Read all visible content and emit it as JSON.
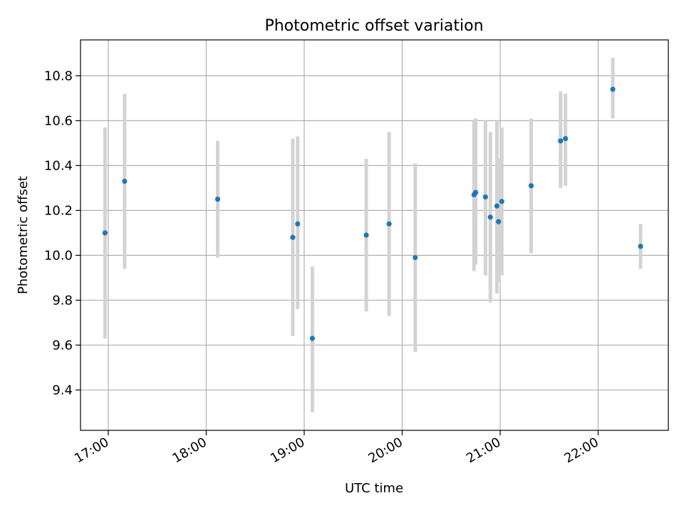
{
  "chart_data": {
    "type": "scatter",
    "title": "Photometric offset variation",
    "xlabel": "UTC time",
    "ylabel": "Photometric offset",
    "x_tick_labels": [
      "17:00",
      "18:00",
      "19:00",
      "20:00",
      "21:00",
      "22:00"
    ],
    "x_ticks": [
      "17:00",
      "18:00",
      "19:00",
      "20:00",
      "21:00",
      "22:00"
    ],
    "xlim": [
      "16:43",
      "22:43"
    ],
    "y_tick_labels": [
      "9.4",
      "9.6",
      "9.8",
      "10.0",
      "10.2",
      "10.4",
      "10.6",
      "10.8"
    ],
    "y_ticks": [
      9.4,
      9.6,
      9.8,
      10.0,
      10.2,
      10.4,
      10.6,
      10.8
    ],
    "ylim": [
      9.22,
      10.96
    ],
    "grid": true,
    "errorbar_color": "#d3d3d3",
    "marker_color": "#1f77b4",
    "points": [
      {
        "x": "16:58",
        "y": 10.1,
        "ylow": 9.63,
        "yhigh": 10.57
      },
      {
        "x": "17:10",
        "y": 10.33,
        "ylow": 9.94,
        "yhigh": 10.72
      },
      {
        "x": "18:07",
        "y": 10.25,
        "ylow": 9.99,
        "yhigh": 10.51
      },
      {
        "x": "18:53",
        "y": 10.08,
        "ylow": 9.64,
        "yhigh": 10.52
      },
      {
        "x": "18:56",
        "y": 10.14,
        "ylow": 9.76,
        "yhigh": 10.53
      },
      {
        "x": "19:05",
        "y": 9.63,
        "ylow": 9.3,
        "yhigh": 9.95
      },
      {
        "x": "19:38",
        "y": 10.09,
        "ylow": 9.75,
        "yhigh": 10.43
      },
      {
        "x": "19:52",
        "y": 10.14,
        "ylow": 9.73,
        "yhigh": 10.55
      },
      {
        "x": "20:08",
        "y": 9.99,
        "ylow": 9.57,
        "yhigh": 10.41
      },
      {
        "x": "20:44",
        "y": 10.27,
        "ylow": 9.93,
        "yhigh": 10.6
      },
      {
        "x": "20:45",
        "y": 10.28,
        "ylow": 9.96,
        "yhigh": 10.61
      },
      {
        "x": "20:51",
        "y": 10.26,
        "ylow": 9.91,
        "yhigh": 10.6
      },
      {
        "x": "20:54",
        "y": 10.17,
        "ylow": 9.79,
        "yhigh": 10.55
      },
      {
        "x": "20:58",
        "y": 10.22,
        "ylow": 9.83,
        "yhigh": 10.6
      },
      {
        "x": "20:59",
        "y": 10.15,
        "ylow": 9.88,
        "yhigh": 10.43
      },
      {
        "x": "21:01",
        "y": 10.24,
        "ylow": 9.91,
        "yhigh": 10.57
      },
      {
        "x": "21:19",
        "y": 10.31,
        "ylow": 10.01,
        "yhigh": 10.61
      },
      {
        "x": "21:37",
        "y": 10.51,
        "ylow": 10.3,
        "yhigh": 10.73
      },
      {
        "x": "21:40",
        "y": 10.52,
        "ylow": 10.31,
        "yhigh": 10.72
      },
      {
        "x": "22:09",
        "y": 10.74,
        "ylow": 10.61,
        "yhigh": 10.88
      },
      {
        "x": "22:26",
        "y": 10.04,
        "ylow": 9.94,
        "yhigh": 10.14
      }
    ]
  }
}
